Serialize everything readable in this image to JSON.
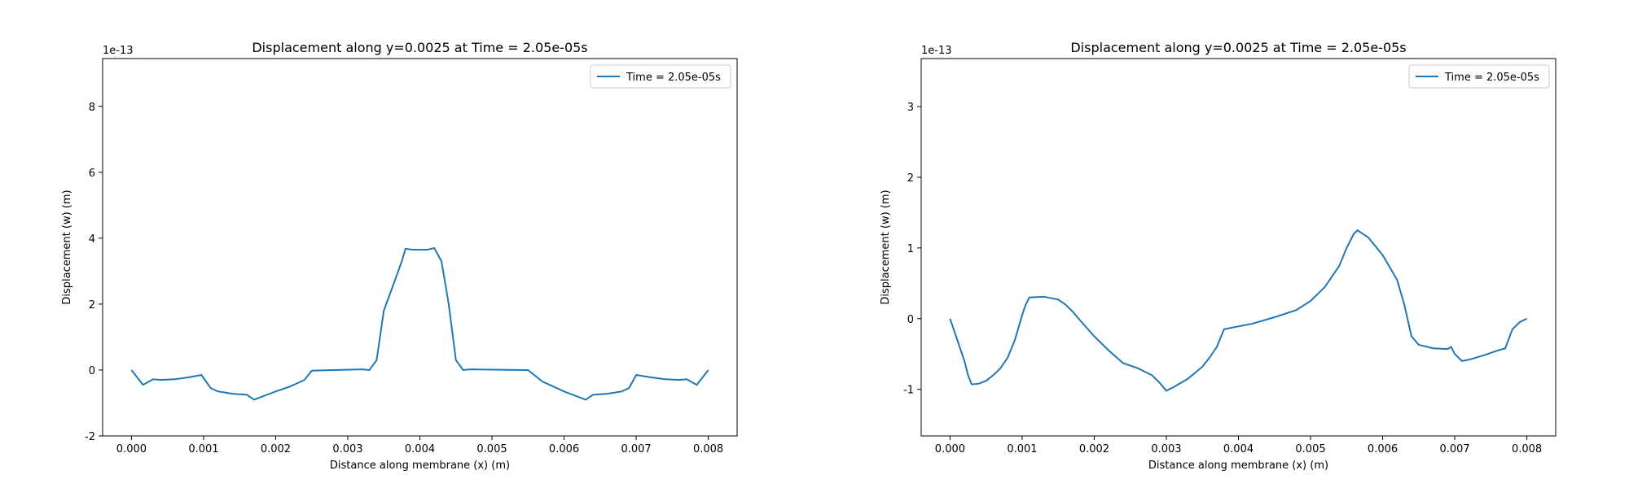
{
  "chart_data": [
    {
      "type": "line",
      "title": "Displacement along y=0.0025 at Time = 2.05e-05s",
      "xlabel": "Distance along membrane (x) (m)",
      "ylabel": "Displacement (w) (m)",
      "y_offset": "1e-13",
      "legend": "upper right",
      "x": [
        0,
        0.00016,
        0.0003,
        0.0004,
        0.0006,
        0.0008,
        0.00097,
        0.0011,
        0.0012,
        0.0014,
        0.0016,
        0.0017,
        0.002,
        0.0022,
        0.0024,
        0.0025,
        0.0028,
        0.0032,
        0.0033,
        0.0034,
        0.0035,
        0.00375,
        0.0038,
        0.0039,
        0.0041,
        0.0042,
        0.0043,
        0.0044,
        0.0045,
        0.0046,
        0.0047,
        0.005,
        0.0055,
        0.0057,
        0.006,
        0.0063,
        0.0064,
        0.0066,
        0.0068,
        0.0069,
        0.007,
        0.0072,
        0.0074,
        0.0076,
        0.0077,
        0.00784,
        0.008
      ],
      "series": [
        {
          "name": "Time = 2.05e-05s",
          "color": "#1f77b4",
          "values": [
            0,
            -0.45,
            -0.28,
            -0.3,
            -0.28,
            -0.22,
            -0.15,
            -0.55,
            -0.65,
            -0.72,
            -0.75,
            -0.9,
            -0.65,
            -0.5,
            -0.3,
            -0.02,
            0,
            0.02,
            0,
            0.3,
            1.8,
            3.3,
            3.68,
            3.65,
            3.65,
            3.7,
            3.3,
            2.0,
            0.3,
            0,
            0.02,
            0.01,
            0,
            -0.35,
            -0.65,
            -0.9,
            -0.75,
            -0.72,
            -0.65,
            -0.55,
            -0.15,
            -0.22,
            -0.28,
            -0.3,
            -0.28,
            -0.45,
            0
          ]
        }
      ],
      "xlim": [
        -0.0004,
        0.0084
      ],
      "ylim": [
        -2,
        9.45
      ],
      "xticks": [
        {
          "value": 0,
          "label": "0.000"
        },
        {
          "value": 0.001,
          "label": "0.001"
        },
        {
          "value": 0.002,
          "label": "0.002"
        },
        {
          "value": 0.003,
          "label": "0.003"
        },
        {
          "value": 0.004,
          "label": "0.004"
        },
        {
          "value": 0.005,
          "label": "0.005"
        },
        {
          "value": 0.006,
          "label": "0.006"
        },
        {
          "value": 0.007,
          "label": "0.007"
        },
        {
          "value": 0.008,
          "label": "0.008"
        }
      ],
      "yticks": [
        -2,
        0,
        2,
        4,
        6,
        8
      ]
    },
    {
      "type": "line",
      "title": "Displacement along y=0.0025 at Time = 2.05e-05s",
      "xlabel": "Distance along membrane (x) (m)",
      "ylabel": "Displacement (w) (m)",
      "y_offset": "1e-13",
      "legend": "upper right",
      "x": [
        0,
        0.0001,
        0.0002,
        0.00025,
        0.0003,
        0.0004,
        0.0005,
        0.0006,
        0.0007,
        0.0008,
        0.0009,
        0.001,
        0.00105,
        0.0011,
        0.0013,
        0.0015,
        0.0016,
        0.0017,
        0.0018,
        0.002,
        0.0022,
        0.0024,
        0.0026,
        0.0028,
        0.0029,
        0.003,
        0.0031,
        0.0033,
        0.0035,
        0.0036,
        0.0037,
        0.0038,
        0.004,
        0.0042,
        0.0045,
        0.0048,
        0.005,
        0.0052,
        0.0054,
        0.0055,
        0.0056,
        0.00565,
        0.0058,
        0.006,
        0.0062,
        0.0063,
        0.0064,
        0.0065,
        0.0067,
        0.0069,
        0.00695,
        0.007,
        0.0071,
        0.0072,
        0.0074,
        0.0076,
        0.0077,
        0.0078,
        0.0079,
        0.008
      ],
      "series": [
        {
          "name": "Time = 2.05e-05s",
          "color": "#1f77b4",
          "values": [
            0,
            -0.3,
            -0.6,
            -0.8,
            -0.93,
            -0.92,
            -0.88,
            -0.8,
            -0.7,
            -0.55,
            -0.3,
            0.05,
            0.2,
            0.3,
            0.31,
            0.27,
            0.2,
            0.1,
            -0.02,
            -0.25,
            -0.45,
            -0.63,
            -0.7,
            -0.8,
            -0.9,
            -1.02,
            -0.97,
            -0.85,
            -0.68,
            -0.55,
            -0.4,
            -0.15,
            -0.11,
            -0.07,
            0.02,
            0.12,
            0.25,
            0.45,
            0.75,
            1.0,
            1.2,
            1.25,
            1.15,
            0.9,
            0.55,
            0.2,
            -0.25,
            -0.37,
            -0.42,
            -0.43,
            -0.4,
            -0.5,
            -0.6,
            -0.58,
            -0.52,
            -0.45,
            -0.42,
            -0.15,
            -0.05,
            0
          ]
        }
      ],
      "xlim": [
        -0.0004,
        0.0084
      ],
      "ylim": [
        -1.66,
        3.68
      ],
      "xticks": [
        {
          "value": 0,
          "label": "0.000"
        },
        {
          "value": 0.001,
          "label": "0.001"
        },
        {
          "value": 0.002,
          "label": "0.002"
        },
        {
          "value": 0.003,
          "label": "0.003"
        },
        {
          "value": 0.004,
          "label": "0.004"
        },
        {
          "value": 0.005,
          "label": "0.005"
        },
        {
          "value": 0.006,
          "label": "0.006"
        },
        {
          "value": 0.007,
          "label": "0.007"
        },
        {
          "value": 0.008,
          "label": "0.008"
        }
      ],
      "yticks": [
        -1,
        0,
        1,
        2,
        3
      ]
    }
  ]
}
